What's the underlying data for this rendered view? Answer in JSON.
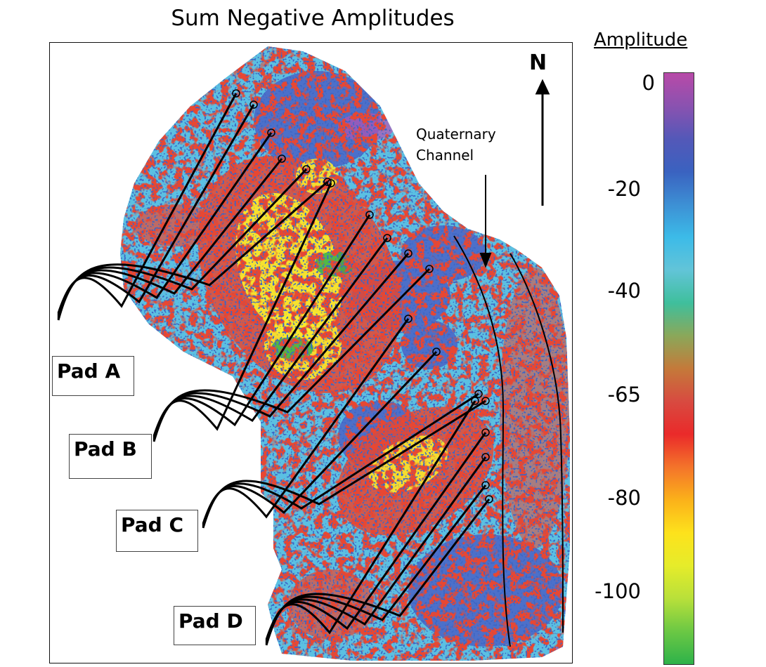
{
  "title": "Sum Negative Amplitudes",
  "north_label": "N",
  "annotation": {
    "line1": "Quaternary",
    "line2": "Channel"
  },
  "pads": [
    "Pad A",
    "Pad B",
    "Pad C",
    "Pad D"
  ],
  "legend": {
    "title": "Amplitude",
    "ticks": [
      "0",
      "-20",
      "-40",
      "-65",
      "-80",
      "-100"
    ],
    "range": [
      -120,
      0
    ],
    "colors_top_to_bottom": [
      "#b84aa8",
      "#8a52b0",
      "#5458b8",
      "#3a62c0",
      "#3d8fd4",
      "#3cbbe8",
      "#62c4d8",
      "#3fbf9c",
      "#8aa85a",
      "#c47a3a",
      "#d84a40",
      "#ea2a2a",
      "#f4742a",
      "#fbb11a",
      "#fde21c",
      "#e6ec2a",
      "#b8e03a",
      "#6cc844",
      "#2eb24a"
    ]
  },
  "colors": {
    "background_blue": "#5bc0e2",
    "dark_blue": "#4a62c6",
    "red": "#e84630",
    "yellow": "#f8ea2c",
    "green": "#34b24a",
    "purple": "#b452b4",
    "well_lines": "#000000"
  }
}
